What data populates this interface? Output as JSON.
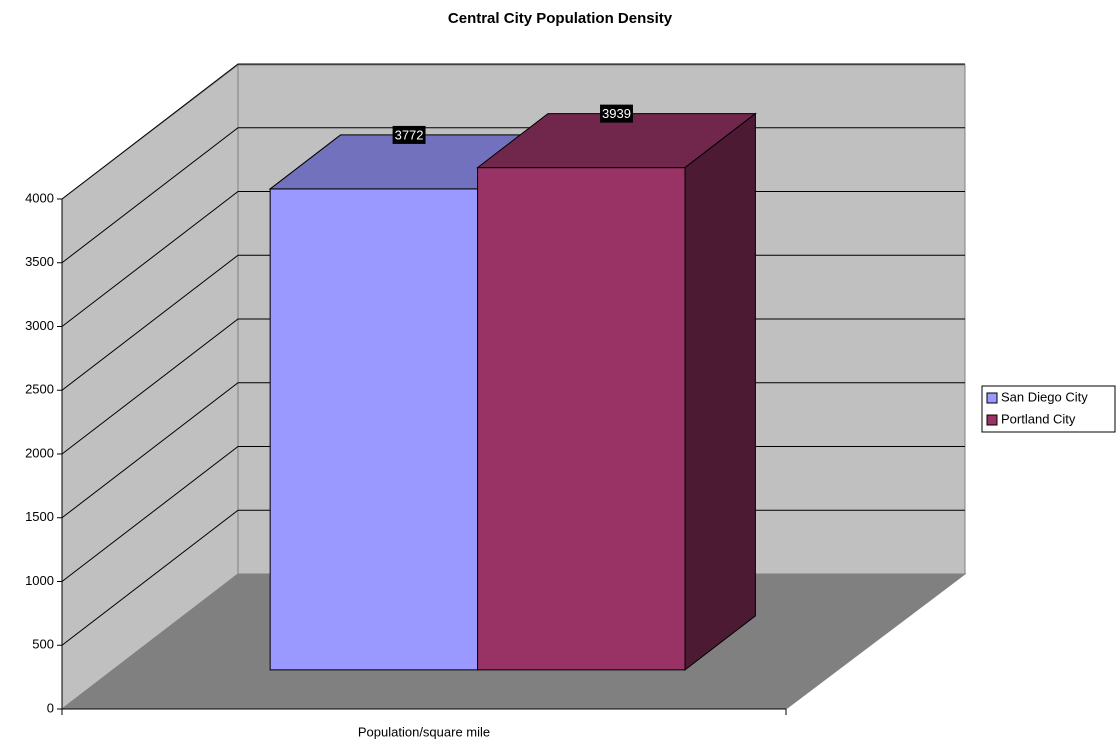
{
  "chart_data": {
    "type": "bar3d",
    "title": "Central City Population Density",
    "categories": [
      "Population/square mile"
    ],
    "series": [
      {
        "name": "San Diego City",
        "color": "#9999ff",
        "values": [
          3772
        ]
      },
      {
        "name": "Portland City",
        "color": "#993366",
        "values": [
          3939
        ]
      }
    ],
    "ylim": [
      0,
      4000
    ],
    "yticks": [
      0,
      500,
      1000,
      1500,
      2000,
      2500,
      3000,
      3500,
      4000
    ],
    "grid": true,
    "legend": "right",
    "data_labels": true
  }
}
